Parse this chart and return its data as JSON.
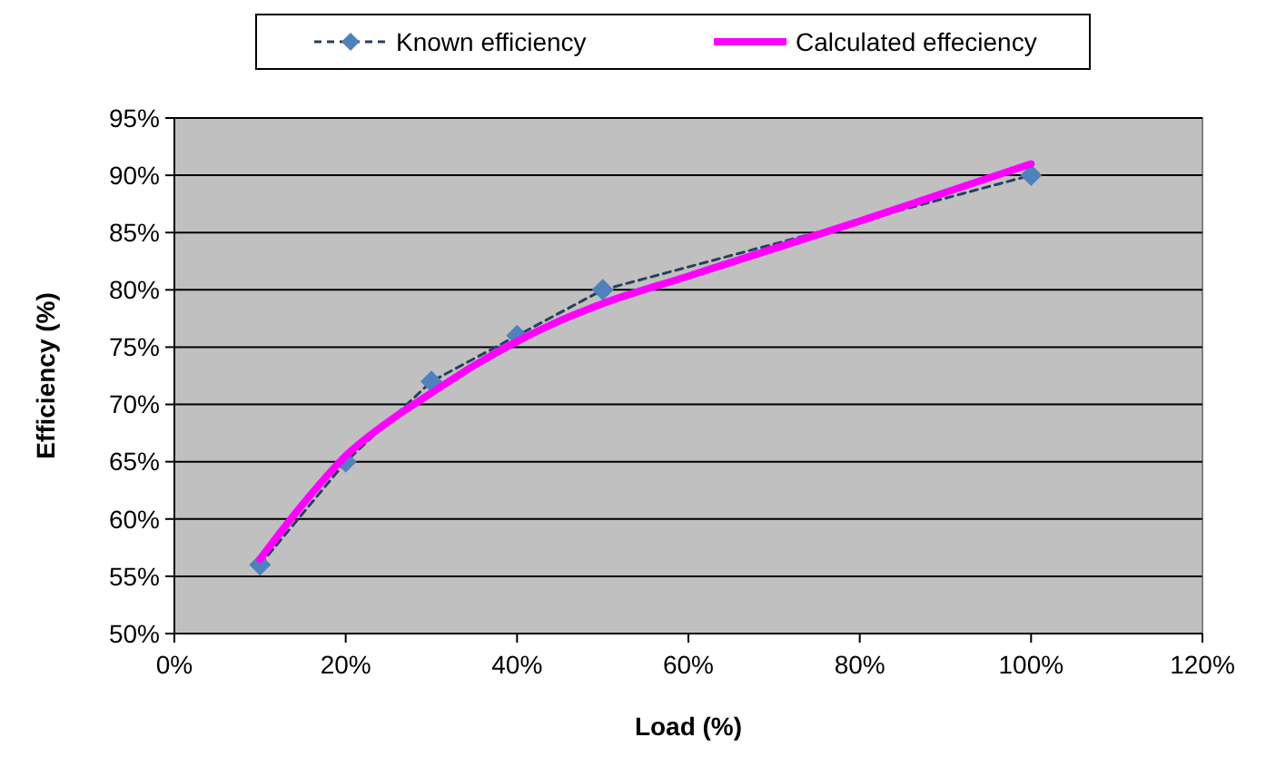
{
  "chart_data": {
    "type": "line",
    "xlabel": "Load (%)",
    "ylabel": "Efficiency (%)",
    "x": [
      10,
      20,
      30,
      40,
      50,
      100
    ],
    "series": [
      {
        "name": "Known efficiency",
        "color": "#4f81bd",
        "marker": "diamond",
        "line_style": "dashed",
        "values": [
          56,
          65,
          72,
          76,
          80,
          90
        ]
      },
      {
        "name": "Calculated effeciency",
        "color": "#ff00ff",
        "marker": "none",
        "line_style": "solid",
        "x": [
          10,
          15,
          20,
          25,
          30,
          35,
          40,
          45,
          50,
          60,
          70,
          80,
          90,
          100
        ],
        "values": [
          56.5,
          61.3,
          65.5,
          68.5,
          71,
          73.4,
          75.5,
          77.3,
          78.8,
          81.2,
          83.6,
          86,
          88.5,
          91
        ]
      }
    ],
    "xlim": [
      0,
      120
    ],
    "xticks": [
      {
        "value": 0,
        "label": "0%"
      },
      {
        "value": 20,
        "label": "20%"
      },
      {
        "value": 40,
        "label": "40%"
      },
      {
        "value": 60,
        "label": "60%"
      },
      {
        "value": 80,
        "label": "80%"
      },
      {
        "value": 100,
        "label": "100%"
      },
      {
        "value": 120,
        "label": "120%"
      }
    ],
    "ylim": [
      50,
      95
    ],
    "yticks": [
      {
        "value": 50,
        "label": "50%"
      },
      {
        "value": 55,
        "label": "55%"
      },
      {
        "value": 60,
        "label": "60%"
      },
      {
        "value": 65,
        "label": "65%"
      },
      {
        "value": 70,
        "label": "70%"
      },
      {
        "value": 75,
        "label": "75%"
      },
      {
        "value": 80,
        "label": "80%"
      },
      {
        "value": 85,
        "label": "85%"
      },
      {
        "value": 90,
        "label": "90%"
      },
      {
        "value": 95,
        "label": "95%"
      }
    ],
    "grid": "y",
    "legend": "top"
  }
}
